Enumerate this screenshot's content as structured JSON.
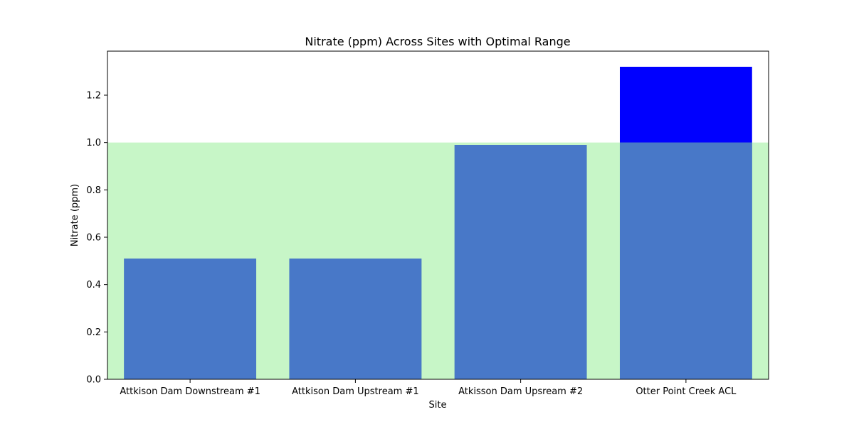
{
  "chart_data": {
    "type": "bar",
    "title": "Nitrate (ppm) Across Sites with Optimal Range",
    "xlabel": "Site",
    "ylabel": "Nitrate (ppm)",
    "categories": [
      "Attkison Dam Downstream #1",
      "Attkison Dam Upstream #1",
      "Atkisson Dam Upsream #2",
      "Otter Point Creek ACL"
    ],
    "values": [
      0.51,
      0.51,
      0.99,
      1.32
    ],
    "ylim": [
      0,
      1.386
    ],
    "yticks": [
      0.0,
      0.2,
      0.4,
      0.6,
      0.8,
      1.0,
      1.2
    ],
    "optimal_range": [
      0,
      1.0
    ],
    "grid": false,
    "colors": {
      "in_range_bar": "#4878c8",
      "above_range_bar": "#0000ff",
      "optimal_band": "#c6f5c6",
      "optimal_edge": "#a8eaa8",
      "axis": "#000000"
    }
  }
}
